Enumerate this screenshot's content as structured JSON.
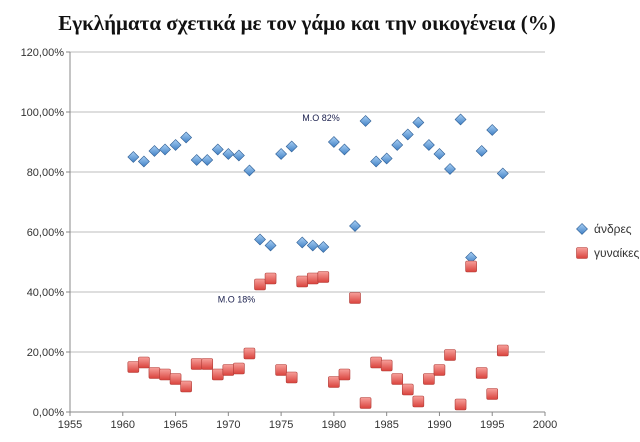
{
  "chart_data": {
    "type": "scatter",
    "title": "Εγκλήματα σχετικά με τον γάμο και την οικογένεια (%)",
    "xlabel": "",
    "ylabel": "",
    "xlim": [
      1955,
      2000
    ],
    "ylim": [
      0,
      1.2
    ],
    "x_ticks": [
      1955,
      1960,
      1965,
      1970,
      1975,
      1980,
      1985,
      1990,
      1995,
      2000
    ],
    "y_ticks": [
      0,
      0.2,
      0.4,
      0.6,
      0.8,
      1.0,
      1.2
    ],
    "y_tick_labels": [
      "0,00%",
      "20,00%",
      "40,00%",
      "60,00%",
      "80,00%",
      "100,00%",
      "120,00%"
    ],
    "grid": "horizontal",
    "legend_position": "right",
    "series": [
      {
        "name": "άνδρες",
        "marker": "diamond",
        "color": "#5b9bd5",
        "points": [
          [
            1961,
            0.85
          ],
          [
            1962,
            0.835
          ],
          [
            1963,
            0.87
          ],
          [
            1964,
            0.875
          ],
          [
            1965,
            0.89
          ],
          [
            1966,
            0.915
          ],
          [
            1967,
            0.84
          ],
          [
            1968,
            0.84
          ],
          [
            1969,
            0.875
          ],
          [
            1970,
            0.86
          ],
          [
            1971,
            0.855
          ],
          [
            1972,
            0.805
          ],
          [
            1973,
            0.575
          ],
          [
            1974,
            0.555
          ],
          [
            1975,
            0.86
          ],
          [
            1976,
            0.885
          ],
          [
            1977,
            0.565
          ],
          [
            1978,
            0.555
          ],
          [
            1979,
            0.55
          ],
          [
            1980,
            0.9
          ],
          [
            1981,
            0.875
          ],
          [
            1982,
            0.62
          ],
          [
            1983,
            0.97
          ],
          [
            1984,
            0.835
          ],
          [
            1985,
            0.845
          ],
          [
            1986,
            0.89
          ],
          [
            1987,
            0.925
          ],
          [
            1988,
            0.965
          ],
          [
            1989,
            0.89
          ],
          [
            1990,
            0.86
          ],
          [
            1991,
            0.81
          ],
          [
            1992,
            0.975
          ],
          [
            1993,
            0.515
          ],
          [
            1994,
            0.87
          ],
          [
            1995,
            0.94
          ],
          [
            1996,
            0.795
          ]
        ]
      },
      {
        "name": "γυναίκες",
        "marker": "square",
        "color": "#e8635f",
        "points": [
          [
            1961,
            0.15
          ],
          [
            1962,
            0.165
          ],
          [
            1963,
            0.13
          ],
          [
            1964,
            0.125
          ],
          [
            1965,
            0.11
          ],
          [
            1966,
            0.085
          ],
          [
            1967,
            0.16
          ],
          [
            1968,
            0.16
          ],
          [
            1969,
            0.125
          ],
          [
            1970,
            0.14
          ],
          [
            1971,
            0.145
          ],
          [
            1972,
            0.195
          ],
          [
            1973,
            0.425
          ],
          [
            1974,
            0.445
          ],
          [
            1975,
            0.14
          ],
          [
            1976,
            0.115
          ],
          [
            1977,
            0.435
          ],
          [
            1978,
            0.445
          ],
          [
            1979,
            0.45
          ],
          [
            1980,
            0.1
          ],
          [
            1981,
            0.125
          ],
          [
            1982,
            0.38
          ],
          [
            1983,
            0.03
          ],
          [
            1984,
            0.165
          ],
          [
            1985,
            0.155
          ],
          [
            1986,
            0.11
          ],
          [
            1987,
            0.075
          ],
          [
            1988,
            0.035
          ],
          [
            1989,
            0.11
          ],
          [
            1990,
            0.14
          ],
          [
            1991,
            0.19
          ],
          [
            1992,
            0.025
          ],
          [
            1993,
            0.485
          ],
          [
            1994,
            0.13
          ],
          [
            1995,
            0.06
          ],
          [
            1996,
            0.205
          ]
        ]
      }
    ],
    "annotations": [
      {
        "text": "Μ.Ο 82%",
        "x": 1977,
        "y": 0.97
      },
      {
        "text": "Μ.Ο 18%",
        "x": 1969,
        "y": 0.365
      }
    ]
  }
}
